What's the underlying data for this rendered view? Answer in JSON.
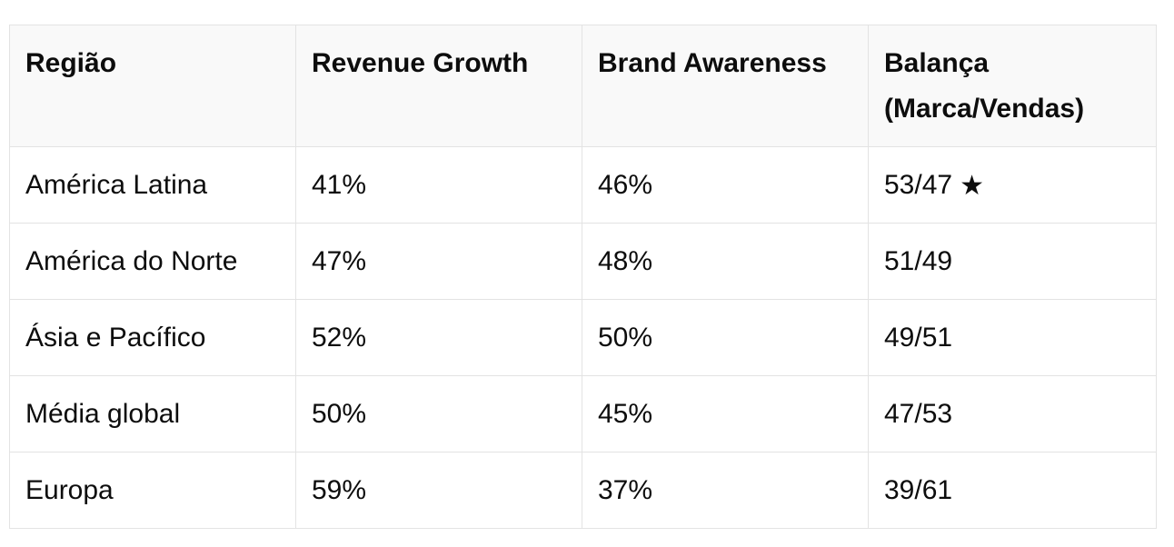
{
  "table": {
    "headers": [
      "Região",
      "Revenue Growth",
      "Brand Awareness",
      "Balança (Marca/Vendas)"
    ],
    "rows": [
      {
        "region": "América Latina",
        "revenue_growth": "41%",
        "brand_awareness": "46%",
        "balance": "53/47",
        "marked": true
      },
      {
        "region": "América do Norte",
        "revenue_growth": "47%",
        "brand_awareness": "48%",
        "balance": "51/49",
        "marked": false
      },
      {
        "region": "Ásia e Pacífico",
        "revenue_growth": "52%",
        "brand_awareness": "50%",
        "balance": "49/51",
        "marked": false
      },
      {
        "region": "Média global",
        "revenue_growth": "50%",
        "brand_awareness": "45%",
        "balance": "47/53",
        "marked": false
      },
      {
        "region": "Europa",
        "revenue_growth": "59%",
        "brand_awareness": "37%",
        "balance": "39/61",
        "marked": false
      }
    ],
    "marker_icon": "star-icon",
    "marker_glyph": "★"
  }
}
